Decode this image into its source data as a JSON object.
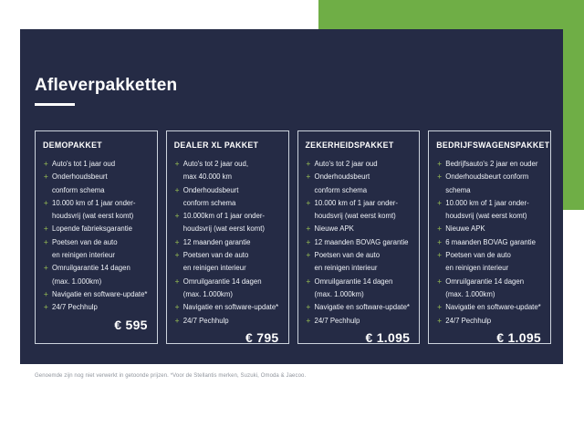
{
  "colors": {
    "accent_green": "#6fae46",
    "slide_navy": "#252b45",
    "card_border": "#ccd3dd",
    "bullet_green": "#7d9c50"
  },
  "slide": {
    "title": "Afleverpakketten",
    "footnote": "Genoemde zijn nog niet verwerkt in getoonde prijzen. *Voor de Stellantis merken, Suzuki, Omoda & Jaecoo."
  },
  "bullet": {
    "glyph": "+"
  },
  "cards": [
    {
      "title": "DEMOPAKKET",
      "price": "€ 595",
      "items": [
        [
          "Auto's tot 1 jaar oud"
        ],
        [
          "Onderhoudsbeurt",
          "conform schema"
        ],
        [
          "10.000 km of 1 jaar onder-",
          "houdsvrij (wat eerst komt)"
        ],
        [
          "Lopende fabrieksgarantie"
        ],
        [
          "Poetsen van de auto",
          "en reinigen interieur"
        ],
        [
          "Omruilgarantie 14 dagen",
          "(max. 1.000km)"
        ],
        [
          "Navigatie en software-update*"
        ],
        [
          "24/7 Pechhulp"
        ]
      ]
    },
    {
      "title": "DEALER XL PAKKET",
      "price": "€ 795",
      "items": [
        [
          "Auto's tot 2 jaar oud,",
          "max 40.000 km"
        ],
        [
          "Onderhoudsbeurt",
          "conform schema"
        ],
        [
          "10.000km of 1 jaar onder-",
          "houdsvrij (wat eerst komt)"
        ],
        [
          "12 maanden garantie"
        ],
        [
          "Poetsen van de auto",
          "en reinigen interieur"
        ],
        [
          "Omruilgarantie 14 dagen",
          "(max. 1.000km)"
        ],
        [
          "Navigatie en software-update*"
        ],
        [
          "24/7 Pechhulp"
        ]
      ]
    },
    {
      "title": "ZEKERHEIDSPAKKET",
      "price": "€ 1.095",
      "items": [
        [
          "Auto's tot 2 jaar oud"
        ],
        [
          "Onderhoudsbeurt",
          "conform schema"
        ],
        [
          "10.000 km of 1 jaar onder-",
          "houdsvrij (wat eerst komt)"
        ],
        [
          "Nieuwe APK"
        ],
        [
          "12 maanden BOVAG garantie"
        ],
        [
          "Poetsen van de auto",
          "en reinigen interieur"
        ],
        [
          "Omruilgarantie 14 dagen",
          "(max. 1.000km)"
        ],
        [
          "Navigatie en software-update*"
        ],
        [
          "24/7 Pechhulp"
        ]
      ]
    },
    {
      "title": "BEDRIJFSWAGENSPAKKET",
      "price": "€ 1.095",
      "items": [
        [
          "Bedrijfsauto's 2 jaar en ouder"
        ],
        [
          "Onderhoudsbeurt conform",
          "schema"
        ],
        [
          "10.000 km of 1 jaar onder-",
          "houdsvrij (wat eerst komt)"
        ],
        [
          "Nieuwe APK"
        ],
        [
          "6 maanden BOVAG garantie"
        ],
        [
          "Poetsen van de auto",
          "en reinigen interieur"
        ],
        [
          "Omruilgarantie 14 dagen",
          "(max. 1.000km)"
        ],
        [
          "Navigatie en software-update*"
        ],
        [
          "24/7 Pechhulp"
        ]
      ]
    }
  ]
}
